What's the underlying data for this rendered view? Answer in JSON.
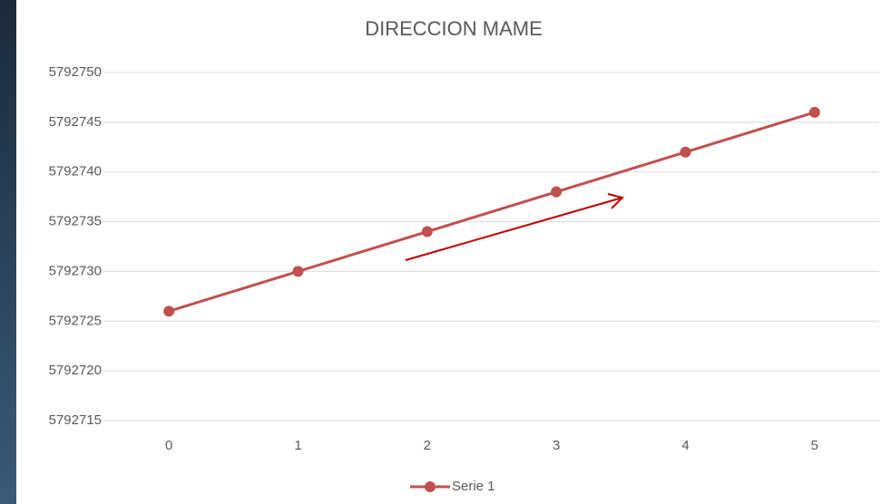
{
  "chart_data": {
    "type": "line",
    "title": "DIRECCION MAME",
    "categories": [
      "0",
      "1",
      "2",
      "3",
      "4",
      "5"
    ],
    "series": [
      {
        "name": "Serie 1",
        "color": "#c0504d",
        "values": [
          5792726,
          5792730,
          5792734,
          5792738,
          5792742,
          5792746
        ]
      }
    ],
    "ylim": [
      5792715,
      5792750
    ],
    "yticks": [
      5792715,
      5792720,
      5792725,
      5792730,
      5792735,
      5792740,
      5792745,
      5792750
    ],
    "grid": true,
    "legend": "bottom"
  }
}
